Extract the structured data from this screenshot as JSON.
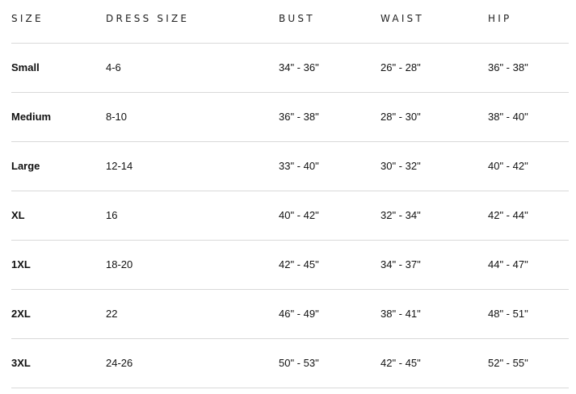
{
  "table": {
    "headers": [
      "SIZE",
      "DRESS SIZE",
      "BUST",
      "WAIST",
      "HIP"
    ],
    "rows": [
      [
        "Small",
        "4-6",
        "34\" - 36\"",
        "26\" - 28\"",
        "36\" - 38\""
      ],
      [
        "Medium",
        "8-10",
        "36\" - 38\"",
        "28\" - 30\"",
        "38\" - 40\""
      ],
      [
        "Large",
        "12-14",
        "33\" - 40\"",
        "30\" - 32\"",
        "40\" - 42\""
      ],
      [
        "XL",
        "16",
        "40\" - 42\"",
        "32\" - 34\"",
        "42\" - 44\""
      ],
      [
        "1XL",
        "18-20",
        "42\" - 45\"",
        "34\" - 37\"",
        "44\" - 47\""
      ],
      [
        "2XL",
        "22",
        "46\" - 49\"",
        "38\" - 41\"",
        "48\" - 51\""
      ],
      [
        "3XL",
        "24-26",
        "50\" - 53\"",
        "42\" - 45\"",
        "52\" - 55\""
      ]
    ]
  }
}
